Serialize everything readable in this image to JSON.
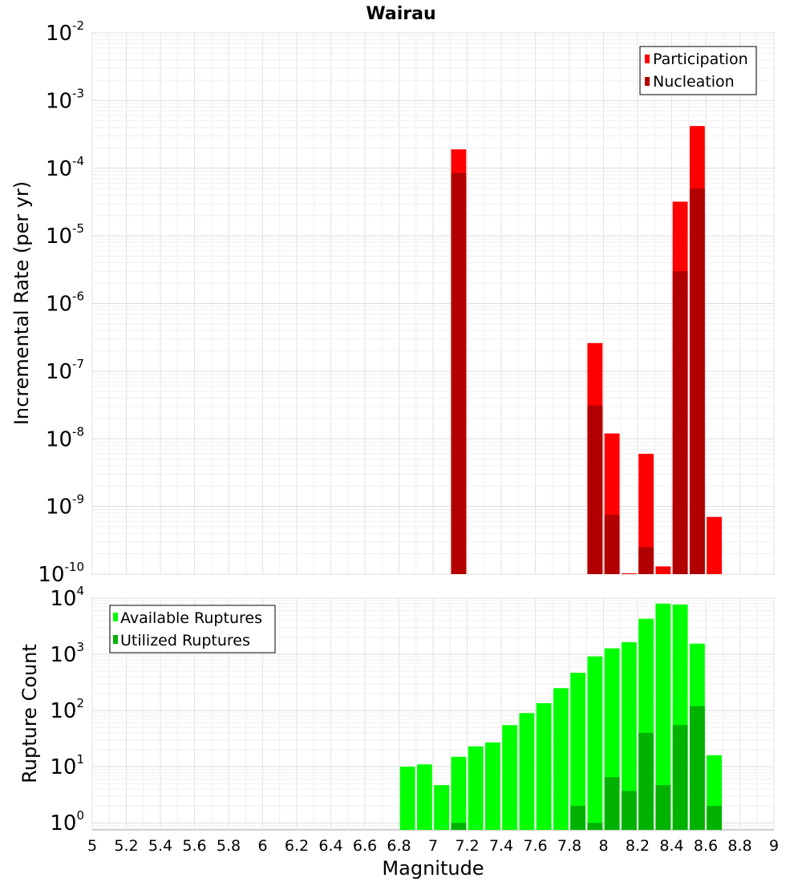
{
  "title": "Wairau",
  "chart_data": [
    {
      "type": "bar",
      "scale": "log",
      "ylabel": "Incremental Rate (per yr)",
      "ylim": [
        1e-10,
        0.01
      ],
      "yticks": [
        {
          "base": "10",
          "exp": "-2"
        },
        {
          "base": "10",
          "exp": "-3"
        },
        {
          "base": "10",
          "exp": "-4"
        },
        {
          "base": "10",
          "exp": "-5"
        },
        {
          "base": "10",
          "exp": "-6"
        },
        {
          "base": "10",
          "exp": "-7"
        },
        {
          "base": "10",
          "exp": "-8"
        },
        {
          "base": "10",
          "exp": "-9"
        },
        {
          "base": "10",
          "exp": "-10"
        }
      ],
      "grid": true,
      "legend_position": "top-right",
      "series": [
        {
          "name": "Participation",
          "color": "#ff0000",
          "points": [
            {
              "x": 7.1,
              "y": 0.00019
            },
            {
              "x": 7.9,
              "y": 2.6e-07
            },
            {
              "x": 8.0,
              "y": 1.2e-08
            },
            {
              "x": 8.1,
              "y": 1e-10
            },
            {
              "x": 8.2,
              "y": 6e-09
            },
            {
              "x": 8.3,
              "y": 1.3e-10
            },
            {
              "x": 8.4,
              "y": 3.2e-05
            },
            {
              "x": 8.5,
              "y": 0.00042
            },
            {
              "x": 8.6,
              "y": 7e-10
            }
          ]
        },
        {
          "name": "Nucleation",
          "color": "#b20000",
          "points": [
            {
              "x": 7.1,
              "y": 8.5e-05
            },
            {
              "x": 7.9,
              "y": 3.1e-08
            },
            {
              "x": 8.0,
              "y": 7.5e-10
            },
            {
              "x": 8.2,
              "y": 2.5e-10
            },
            {
              "x": 8.4,
              "y": 3e-06
            },
            {
              "x": 8.5,
              "y": 5e-05
            }
          ]
        }
      ]
    },
    {
      "type": "bar",
      "scale": "log",
      "xlabel": "Magnitude",
      "ylabel": "Rupture Count",
      "xlim": [
        5,
        9
      ],
      "xticks": [
        "5",
        "5.2",
        "5.4",
        "5.6",
        "5.8",
        "6",
        "6.2",
        "6.4",
        "6.6",
        "6.8",
        "7",
        "7.2",
        "7.4",
        "7.6",
        "7.8",
        "8",
        "8.2",
        "8.4",
        "8.6",
        "8.8",
        "9"
      ],
      "ylim": [
        0.75,
        10000
      ],
      "yticks": [
        {
          "base": "10",
          "exp": "4"
        },
        {
          "base": "10",
          "exp": "3"
        },
        {
          "base": "10",
          "exp": "2"
        },
        {
          "base": "10",
          "exp": "1"
        },
        {
          "base": "10",
          "exp": "0"
        }
      ],
      "grid": true,
      "legend_position": "top-left",
      "series": [
        {
          "name": "Available Ruptures",
          "color": "#00ff00",
          "points": [
            {
              "x": 6.8,
              "y": 10
            },
            {
              "x": 6.9,
              "y": 11
            },
            {
              "x": 7.0,
              "y": 4.7
            },
            {
              "x": 7.1,
              "y": 15
            },
            {
              "x": 7.2,
              "y": 23
            },
            {
              "x": 7.3,
              "y": 27
            },
            {
              "x": 7.4,
              "y": 55
            },
            {
              "x": 7.5,
              "y": 90
            },
            {
              "x": 7.6,
              "y": 135
            },
            {
              "x": 7.7,
              "y": 250
            },
            {
              "x": 7.8,
              "y": 470
            },
            {
              "x": 7.9,
              "y": 920
            },
            {
              "x": 8.0,
              "y": 1280
            },
            {
              "x": 8.1,
              "y": 1650
            },
            {
              "x": 8.2,
              "y": 4300
            },
            {
              "x": 8.3,
              "y": 8000
            },
            {
              "x": 8.4,
              "y": 7700
            },
            {
              "x": 8.5,
              "y": 1550
            },
            {
              "x": 8.6,
              "y": 16
            }
          ]
        },
        {
          "name": "Utilized Ruptures",
          "color": "#00b200",
          "points": [
            {
              "x": 7.1,
              "y": 1
            },
            {
              "x": 7.8,
              "y": 2
            },
            {
              "x": 7.9,
              "y": 1
            },
            {
              "x": 8.0,
              "y": 6.5
            },
            {
              "x": 8.1,
              "y": 3.7
            },
            {
              "x": 8.2,
              "y": 40
            },
            {
              "x": 8.3,
              "y": 4.7
            },
            {
              "x": 8.4,
              "y": 55
            },
            {
              "x": 8.5,
              "y": 120
            },
            {
              "x": 8.6,
              "y": 2
            }
          ]
        }
      ]
    }
  ]
}
